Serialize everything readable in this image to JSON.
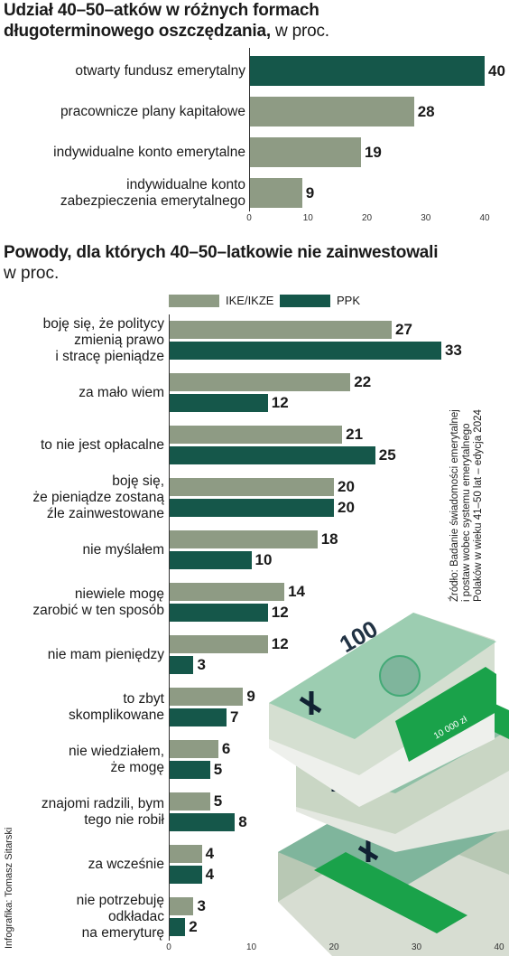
{
  "colors": {
    "light": "#8e9b84",
    "dark": "#15574a",
    "accent_green": "#1aa24a"
  },
  "chart_data": [
    {
      "type": "bar",
      "orientation": "horizontal",
      "title": "Udział 40–50–atków w różnych formach długoterminowego oszczędzania,",
      "title_lines": [
        "Udział 40–50–atków w różnych formach",
        "długoterminowego oszczędzania,"
      ],
      "unit": "w proc.",
      "categories": [
        "otwarty fundusz emerytalny",
        "pracownicze plany kapitałowe",
        "indywidualne konto emerytalne",
        "indywidualne konto zabezpieczenia emerytalnego"
      ],
      "category_lines": [
        [
          "otwarty fundusz emerytalny"
        ],
        [
          "pracownicze plany kapitałowe"
        ],
        [
          "indywidualne konto emerytalne"
        ],
        [
          "indywidualne konto",
          "zabezpieczenia emerytalnego"
        ]
      ],
      "values": [
        40,
        28,
        19,
        9
      ],
      "bar_colors": [
        "dark",
        "light",
        "light",
        "light"
      ],
      "xlim": [
        0,
        40
      ],
      "xticks": [
        0,
        10,
        20,
        30,
        40
      ],
      "grid": false
    },
    {
      "type": "bar",
      "orientation": "horizontal",
      "title": "Powody, dla których 40–50–latkowie nie zainwestowali",
      "unit": "w proc.",
      "legend": "top",
      "categories": [
        "boję się, że politycy zmienią prawo i stracę pieniądze",
        "za mało wiem",
        "to nie jest opłacalne",
        "boję się, że pieniądze zostaną źle zainwestowane",
        "nie myślałem",
        "niewiele mogę zarobić w ten sposób",
        "nie mam pieniędzy",
        "to zbyt skomplikowane",
        "nie wiedziałem, że mogę",
        "znajomi radzili, bym tego nie robił",
        "za wcześnie",
        "nie potrzebuję odkładać na emeryturę"
      ],
      "category_lines": [
        [
          "boję się, że politycy",
          "zmienią prawo",
          "i stracę pieniądze"
        ],
        [
          "za mało wiem"
        ],
        [
          "to nie jest opłacalne"
        ],
        [
          "boję się,",
          "że pieniądze zostaną",
          "źle zainwestowane"
        ],
        [
          "nie myślałem"
        ],
        [
          "niewiele mogę",
          "zarobić w ten sposób"
        ],
        [
          "nie mam pieniędzy"
        ],
        [
          "to zbyt",
          "skomplikowane"
        ],
        [
          "nie wiedziałem,",
          "że mogę"
        ],
        [
          "znajomi radzili, bym",
          "tego nie robił"
        ],
        [
          "za wcześnie"
        ],
        [
          "nie potrzebuję",
          "odkładac",
          "na emeryturę"
        ]
      ],
      "series": [
        {
          "name": "IKE/IKZE",
          "color": "light",
          "values": [
            27,
            22,
            21,
            20,
            18,
            14,
            12,
            9,
            6,
            5,
            4,
            3
          ]
        },
        {
          "name": "PPK",
          "color": "dark",
          "values": [
            33,
            12,
            25,
            20,
            10,
            12,
            3,
            7,
            5,
            8,
            4,
            2
          ]
        }
      ],
      "xlim": [
        0,
        40
      ],
      "xticks": [
        0,
        10,
        20,
        30,
        40
      ],
      "grid": false
    }
  ],
  "source_lines": [
    "Źródło: Badanie świadomości emerytalnej",
    "i postaw wobec systemu emerytalnego",
    "Polaków w wieku 41–50 lat – edycja 2024"
  ],
  "credit": "Infografika: Tomasz Sitarski",
  "illustration": {
    "banknote_value": "100",
    "band_label": "10 000 zł"
  }
}
